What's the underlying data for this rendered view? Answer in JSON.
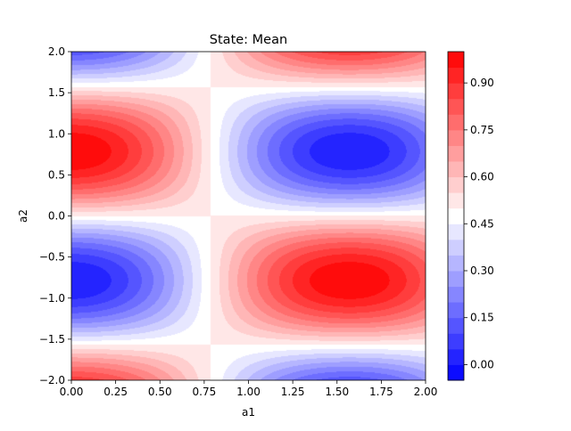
{
  "chart_data": {
    "type": "heatmap",
    "subtype": "filled-contour",
    "title": "State: Mean",
    "xlabel": "a1",
    "ylabel": "a2",
    "xlim": [
      0.0,
      2.0
    ],
    "ylim": [
      -2.0,
      2.0
    ],
    "x_ticks": [
      "0.00",
      "0.25",
      "0.50",
      "0.75",
      "1.00",
      "1.25",
      "1.50",
      "1.75",
      "2.00"
    ],
    "y_ticks": [
      "2.0",
      "1.5",
      "1.0",
      "0.5",
      "0.0",
      "−0.5",
      "−1.0",
      "−1.5",
      "−2.0"
    ],
    "colormap": "bwr",
    "colorbar": {
      "vmin": -0.05,
      "vmax": 1.0,
      "ticks": [
        "0.00",
        "0.15",
        "0.30",
        "0.45",
        "0.60",
        "0.75",
        "0.90"
      ],
      "tick_values": [
        0.0,
        0.15,
        0.3,
        0.45,
        0.6,
        0.75,
        0.9
      ],
      "levels": [
        -0.05,
        0.0,
        0.05,
        0.1,
        0.15,
        0.2,
        0.25,
        0.3,
        0.35,
        0.4,
        0.45,
        0.5,
        0.55,
        0.6,
        0.65,
        0.7,
        0.75,
        0.8,
        0.85,
        0.9,
        0.95,
        1.0
      ]
    },
    "extrema": [
      {
        "label": "max",
        "a1": 0.0,
        "a2": 0.79,
        "value": 0.97
      },
      {
        "label": "min",
        "a1": 1.57,
        "a2": 0.79,
        "value": -0.03
      },
      {
        "label": "max",
        "a1": 1.57,
        "a2": -0.79,
        "value": 0.97
      },
      {
        "label": "min",
        "a1": 0.0,
        "a2": -0.79,
        "value": 0.03
      }
    ],
    "grid": false,
    "legend": "none"
  },
  "colors": {
    "blue_end": "#0000ff",
    "white_mid": "#ffffff",
    "red_end": "#ff0000"
  }
}
